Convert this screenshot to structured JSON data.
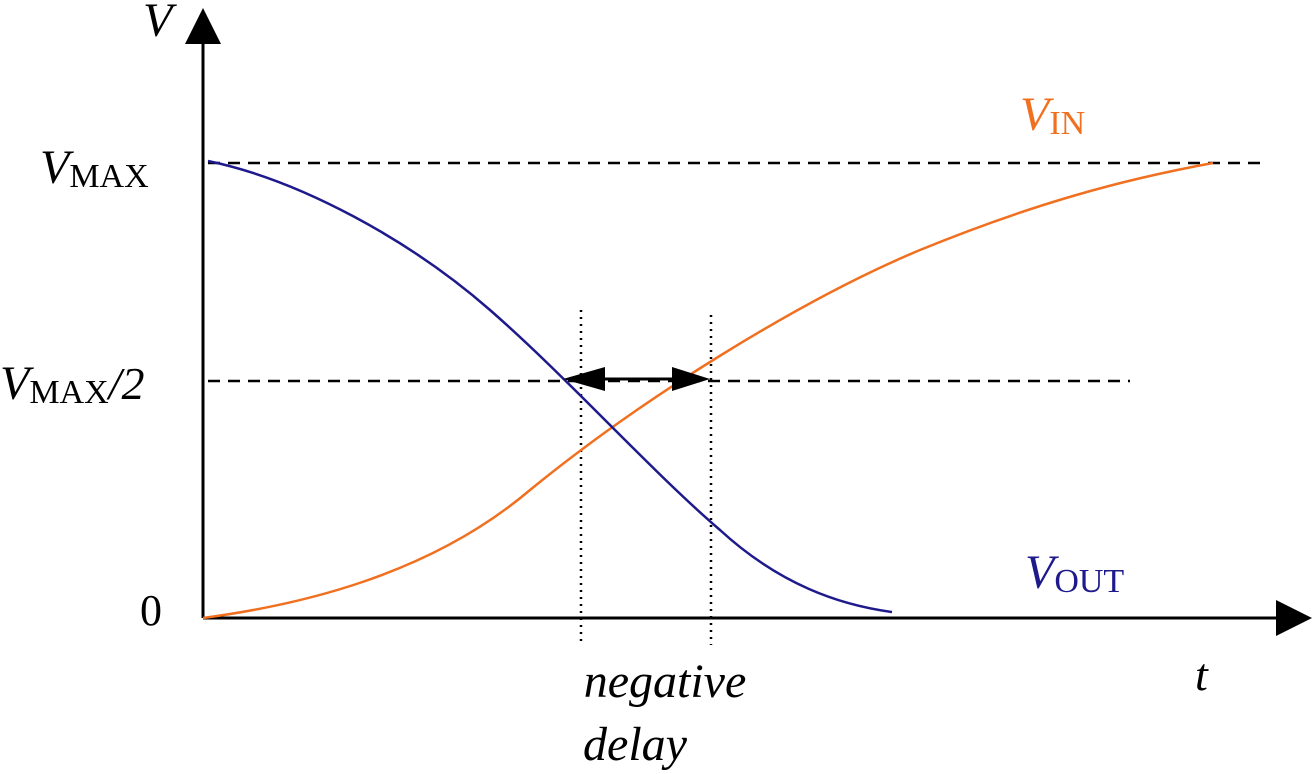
{
  "axes": {
    "y_axis_label": "V",
    "x_axis_label": "t"
  },
  "levels": {
    "vmax": {
      "main": "V",
      "sub": "MAX"
    },
    "half": {
      "main": "V",
      "sub": "MAX",
      "suffix": "/2"
    },
    "zero": "0"
  },
  "curves": {
    "vin": {
      "main": "V",
      "sub": "IN",
      "color": "#f07020"
    },
    "vout": {
      "main": "V",
      "sub": "OUT",
      "color": "#1e1a8c"
    }
  },
  "annotation": {
    "line1": "negative",
    "line2": "delay"
  }
}
